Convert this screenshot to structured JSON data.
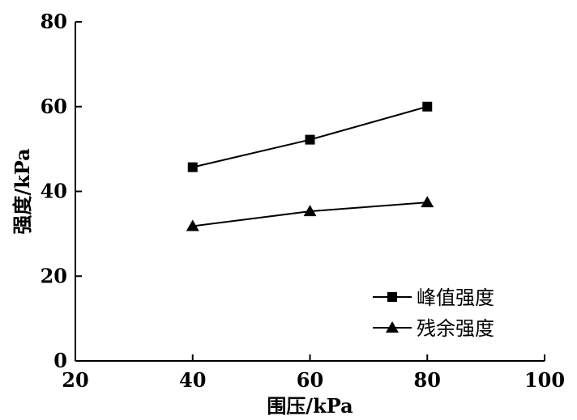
{
  "chart_data": {
    "type": "line",
    "xlabel": "围压/kPa",
    "ylabel": "强度/kPa",
    "xlim": [
      20,
      100
    ],
    "ylim": [
      0,
      80
    ],
    "xticks": [
      20,
      40,
      60,
      80,
      100
    ],
    "yticks": [
      0,
      20,
      40,
      60,
      80
    ],
    "grid": false,
    "legend_position": "bottom-right",
    "series": [
      {
        "name": "峰值强度",
        "marker": "square",
        "x": [
          40,
          60,
          80
        ],
        "y": [
          45.7,
          52.2,
          60.0
        ]
      },
      {
        "name": "残余强度",
        "marker": "triangle",
        "x": [
          40,
          60,
          80
        ],
        "y": [
          31.8,
          35.3,
          37.4
        ]
      }
    ]
  }
}
